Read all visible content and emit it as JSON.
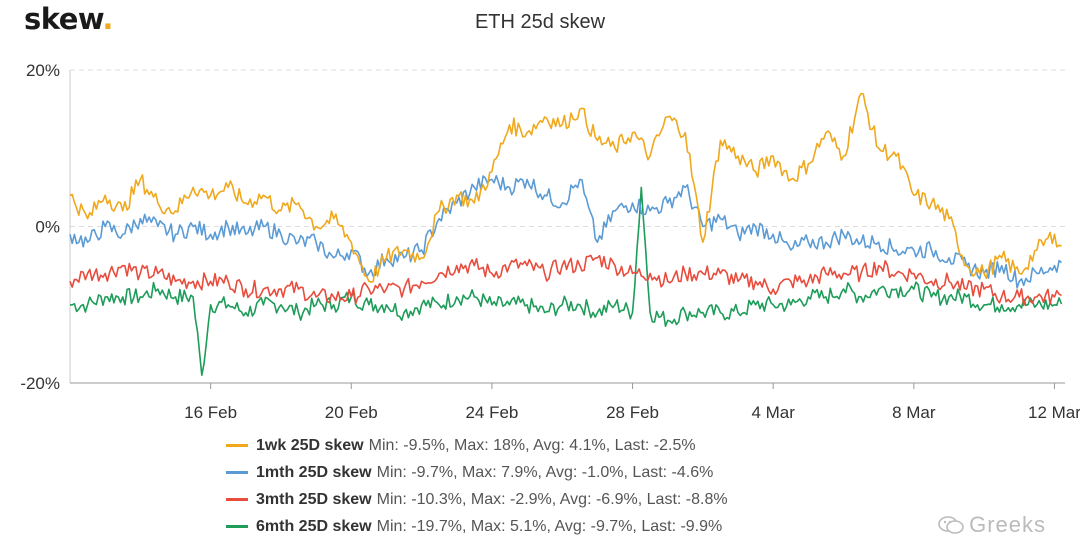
{
  "brand": {
    "logo_text": "skew",
    "logo_dot": ".",
    "dot_color": "#f0a81c"
  },
  "watermark": {
    "text": "Greeks",
    "icon": "wechat-icon"
  },
  "chart_data": {
    "type": "line",
    "title": "ETH 25d skew",
    "ylim": [
      -20,
      20
    ],
    "y_ticks": [
      "20%",
      "0%",
      "-20%"
    ],
    "x_tick_labels": [
      "16 Feb",
      "20 Feb",
      "24 Feb",
      "28 Feb",
      "4 Mar",
      "8 Mar",
      "12 Mar"
    ],
    "x_tick_days": [
      4,
      8,
      12,
      16,
      20,
      24,
      28
    ],
    "x_range_days": [
      0,
      28.3
    ],
    "x_day0": "12 Feb",
    "grid": "horizontal-dashed",
    "legend_position": "bottom",
    "series": [
      {
        "name": "1wk 25D skew",
        "color": "#f0a81c",
        "stats": "Min: -9.5%, Max: 18%, Avg: 4.1%, Last: -2.5%",
        "x": [
          0,
          0.5,
          1,
          1.5,
          2,
          2.5,
          3,
          3.5,
          4,
          4.5,
          5,
          5.5,
          6,
          6.5,
          7,
          7.5,
          8,
          8.5,
          9,
          9.5,
          10,
          10.5,
          11,
          11.5,
          12,
          12.5,
          13,
          13.5,
          14,
          14.5,
          15,
          15.5,
          16,
          16.5,
          17,
          17.5,
          18,
          18.5,
          19,
          19.5,
          20,
          20.5,
          21,
          21.5,
          22,
          22.5,
          23,
          23.5,
          24,
          24.5,
          25,
          25.5,
          26,
          26.5,
          27,
          27.5,
          28,
          28.2
        ],
        "values": [
          4,
          1,
          4,
          2,
          6,
          3,
          2,
          5,
          4,
          5,
          3,
          4,
          2,
          3,
          0,
          1,
          -2,
          -7,
          -4,
          -3,
          -4,
          2,
          4,
          3,
          7,
          13,
          12,
          14,
          13,
          15,
          11,
          10,
          12,
          9,
          14,
          12,
          -2,
          11,
          9,
          7,
          9,
          6,
          8,
          12,
          9,
          17,
          10,
          9,
          4,
          3,
          1,
          -5,
          -6,
          -4,
          -6,
          -3,
          -1,
          -2.5
        ]
      },
      {
        "name": "1mth 25D skew",
        "color": "#5b9bd5",
        "stats": "Min: -9.7%, Max: 7.9%, Avg: -1.0%, Last: -4.6%",
        "x": [
          0,
          0.5,
          1,
          1.5,
          2,
          2.5,
          3,
          3.5,
          4,
          4.5,
          5,
          5.5,
          6,
          6.5,
          7,
          7.5,
          8,
          8.5,
          9,
          9.5,
          10,
          10.5,
          11,
          11.5,
          12,
          12.5,
          13,
          13.5,
          14,
          14.5,
          15,
          15.5,
          16,
          16.5,
          17,
          17.5,
          18,
          18.5,
          19,
          19.5,
          20,
          20.5,
          21,
          21.5,
          22,
          22.5,
          23,
          23.5,
          24,
          24.5,
          25,
          25.5,
          26,
          26.5,
          27,
          27.5,
          28,
          28.2
        ],
        "values": [
          -1,
          -2,
          0,
          -1,
          1,
          0,
          -1,
          0,
          -1,
          0,
          -1,
          0,
          -1,
          -2,
          -2,
          -4,
          -3,
          -6,
          -4,
          -4,
          -3,
          1,
          3,
          5,
          6,
          5,
          6,
          4,
          3,
          6,
          -2,
          2,
          3,
          2,
          3,
          5,
          0,
          1,
          -1,
          0,
          -1,
          -3,
          -2,
          -2,
          -1,
          -2,
          -2,
          -3,
          -3,
          -3,
          -4,
          -5,
          -6,
          -5,
          -7,
          -6,
          -5,
          -4.6
        ]
      },
      {
        "name": "3mth 25D skew",
        "color": "#e84c3d",
        "stats": "Min: -10.3%, Max: -2.9%, Avg: -6.9%, Last: -8.8%",
        "x": [
          0,
          0.5,
          1,
          1.5,
          2,
          2.5,
          3,
          3.5,
          4,
          4.5,
          5,
          5.5,
          6,
          6.5,
          7,
          7.5,
          8,
          8.5,
          9,
          9.5,
          10,
          10.5,
          11,
          11.5,
          12,
          12.5,
          13,
          13.5,
          14,
          14.5,
          15,
          15.5,
          16,
          16.5,
          17,
          17.5,
          18,
          18.5,
          19,
          19.5,
          20,
          20.5,
          21,
          21.5,
          22,
          22.5,
          23,
          23.5,
          24,
          24.5,
          25,
          25.5,
          26,
          26.5,
          27,
          27.5,
          28,
          28.2
        ],
        "values": [
          -7,
          -6,
          -6,
          -5,
          -6,
          -6,
          -7,
          -7,
          -7,
          -7,
          -8,
          -8,
          -8,
          -8,
          -9,
          -9,
          -9,
          -8,
          -8,
          -8,
          -7,
          -6,
          -5,
          -5,
          -6,
          -5,
          -5,
          -6,
          -5,
          -5,
          -4,
          -5,
          -6,
          -6,
          -7,
          -6,
          -6,
          -6,
          -7,
          -7,
          -8,
          -7,
          -7,
          -6,
          -6,
          -6,
          -5,
          -6,
          -6,
          -7,
          -7,
          -8,
          -8,
          -9,
          -9,
          -9,
          -9,
          -8.8
        ]
      },
      {
        "name": "6mth 25D skew",
        "color": "#1e9c5a",
        "stats": "Min: -19.7%, Max: 5.1%, Avg: -9.7%, Last: -9.9%",
        "x": [
          0,
          0.5,
          1,
          1.5,
          2,
          2.5,
          3,
          3.5,
          3.75,
          4,
          4.5,
          5,
          5.5,
          6,
          6.5,
          7,
          7.5,
          8,
          8.5,
          9,
          9.5,
          10,
          10.5,
          11,
          11.5,
          12,
          12.5,
          13,
          13.5,
          14,
          14.5,
          15,
          15.5,
          16,
          16.25,
          16.5,
          17,
          17.5,
          18,
          18.5,
          19,
          19.5,
          20,
          20.5,
          21,
          21.5,
          22,
          22.5,
          23,
          23.5,
          24,
          24.5,
          25,
          25.5,
          26,
          26.5,
          27,
          27.5,
          28,
          28.2
        ],
        "values": [
          -10,
          -10,
          -9,
          -9,
          -9,
          -8,
          -9,
          -9,
          -19,
          -10,
          -10,
          -11,
          -10,
          -10,
          -11,
          -10,
          -10,
          -9,
          -10,
          -10,
          -11,
          -10,
          -10,
          -9,
          -9,
          -10,
          -10,
          -10,
          -11,
          -10,
          -10,
          -11,
          -10,
          -11,
          5,
          -11,
          -12,
          -11,
          -11,
          -11,
          -11,
          -10,
          -10,
          -10,
          -9,
          -9,
          -8,
          -9,
          -8,
          -8,
          -8,
          -9,
          -9,
          -9,
          -10,
          -10,
          -10,
          -10,
          -10,
          -9.9
        ]
      }
    ]
  }
}
